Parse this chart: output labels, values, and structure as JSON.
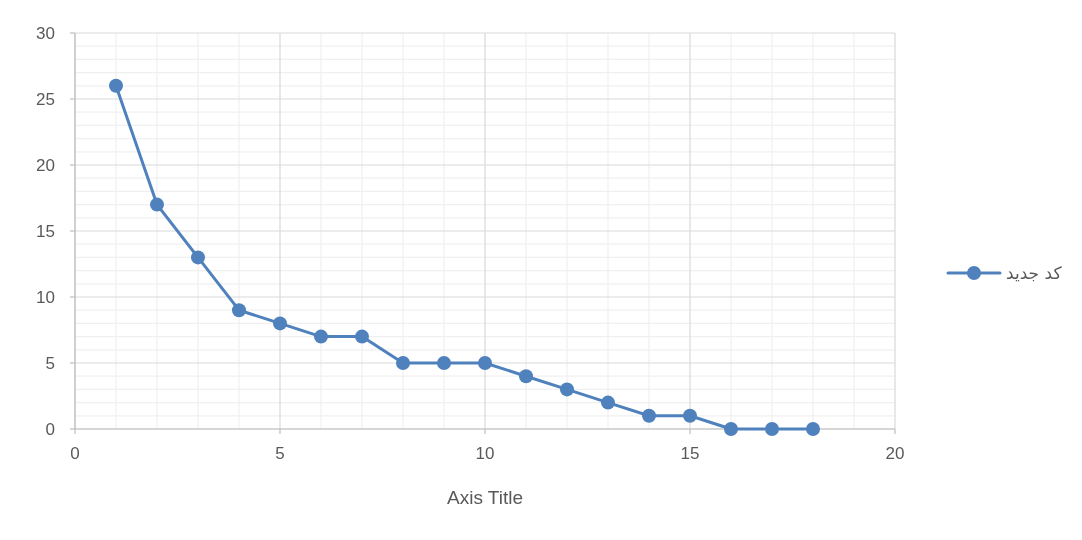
{
  "chart_data": {
    "type": "line",
    "xlabel": "Axis Title",
    "x": [
      1,
      2,
      3,
      4,
      5,
      6,
      7,
      8,
      9,
      10,
      11,
      12,
      13,
      14,
      15,
      16,
      17,
      18
    ],
    "series": [
      {
        "name": "كد جديد",
        "color": "#4f81bd",
        "values": [
          26,
          17,
          13,
          9,
          8,
          7,
          7,
          5,
          5,
          5,
          4,
          3,
          2,
          1,
          1,
          0,
          0,
          0
        ]
      }
    ],
    "xlim": [
      0,
      20
    ],
    "xticks": [
      0,
      5,
      10,
      15,
      20
    ],
    "ylim": [
      0,
      30
    ],
    "yticks": [
      0,
      5,
      10,
      15,
      20,
      25,
      30
    ],
    "grid": true,
    "legend": "right",
    "marker": "circle",
    "line_style": "solid"
  }
}
